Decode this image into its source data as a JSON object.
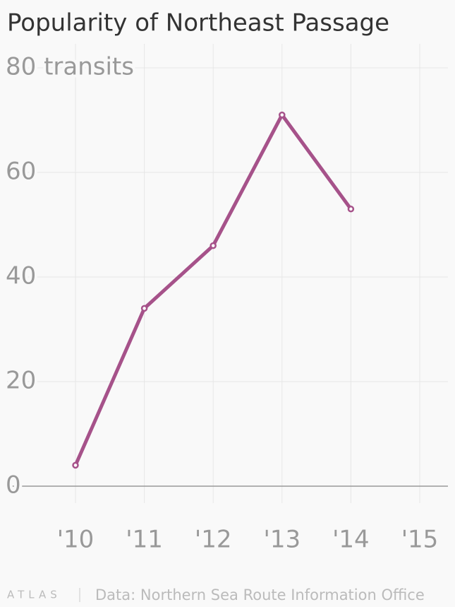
{
  "chart_data": {
    "type": "line",
    "title": "Popularity of Northeast Passage",
    "categories": [
      "'10",
      "'11",
      "'12",
      "'13",
      "'14",
      "'15"
    ],
    "series": [
      {
        "name": "Transits",
        "color": "#a6528a",
        "values": [
          4,
          34,
          46,
          71,
          53,
          null
        ]
      }
    ],
    "ylim": [
      0,
      80
    ],
    "yticks": [
      0,
      20,
      40,
      60,
      {
        "value": 80,
        "label": "80 transits"
      }
    ],
    "grid": true,
    "logo": "ATLAS",
    "source": "Data: Northern Sea Route Information Office"
  }
}
